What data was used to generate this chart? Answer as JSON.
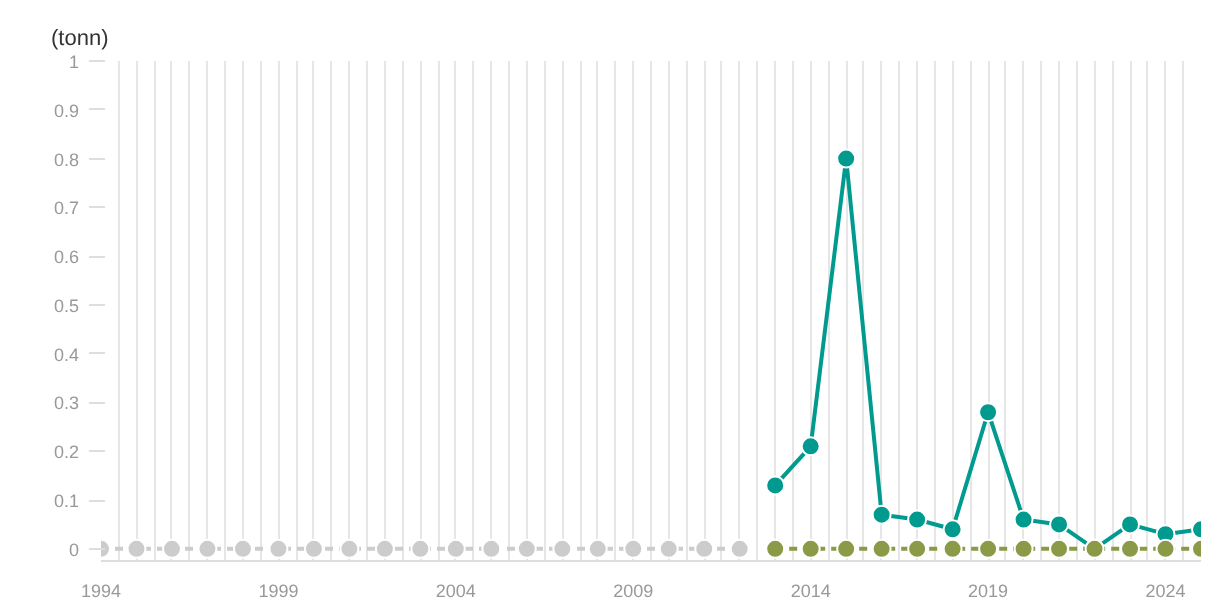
{
  "chart_data": {
    "type": "line",
    "ylabel": "(tonn)",
    "x": [
      1994,
      1995,
      1996,
      1997,
      1998,
      1999,
      2000,
      2001,
      2002,
      2003,
      2004,
      2005,
      2006,
      2007,
      2008,
      2009,
      2010,
      2011,
      2012
    ],
    "series": [
      {
        "color": "#cccccc",
        "line_style": "dashed",
        "values": [
          0,
          0,
          0,
          0,
          0,
          0,
          0,
          0,
          0,
          0,
          0,
          0,
          0,
          0,
          0,
          0,
          0,
          0,
          0
        ]
      },
      {
        "color": "#009a8f",
        "line_style": "solid",
        "x": [
          2013,
          2014,
          2015,
          2016,
          2017,
          2018,
          2019,
          2020,
          2021,
          2022,
          2023,
          2024,
          2025
        ],
        "values": [
          0.13,
          0.21,
          0.8,
          0.07,
          0.06,
          0.04,
          0.28,
          0.06,
          0.05,
          0.0,
          0.05,
          0.03,
          0.04
        ]
      },
      {
        "color": "#8a9a46",
        "line_style": "dashed",
        "x": [
          2013,
          2014,
          2015,
          2016,
          2017,
          2018,
          2019,
          2020,
          2021,
          2022,
          2023,
          2024,
          2025
        ],
        "values": [
          0,
          0,
          0,
          0,
          0,
          0,
          0,
          0,
          0,
          0,
          0,
          0,
          0
        ]
      }
    ],
    "xlim": [
      1994,
      2025
    ],
    "ylim": [
      0,
      1
    ],
    "xticks": [
      1994,
      1999,
      2004,
      2009,
      2014,
      2019,
      2024
    ],
    "yticks": [
      0,
      0.1,
      0.2,
      0.3,
      0.4,
      0.5,
      0.6,
      0.7,
      0.8,
      0.9,
      1
    ],
    "grid": "x",
    "marker": "circle"
  }
}
